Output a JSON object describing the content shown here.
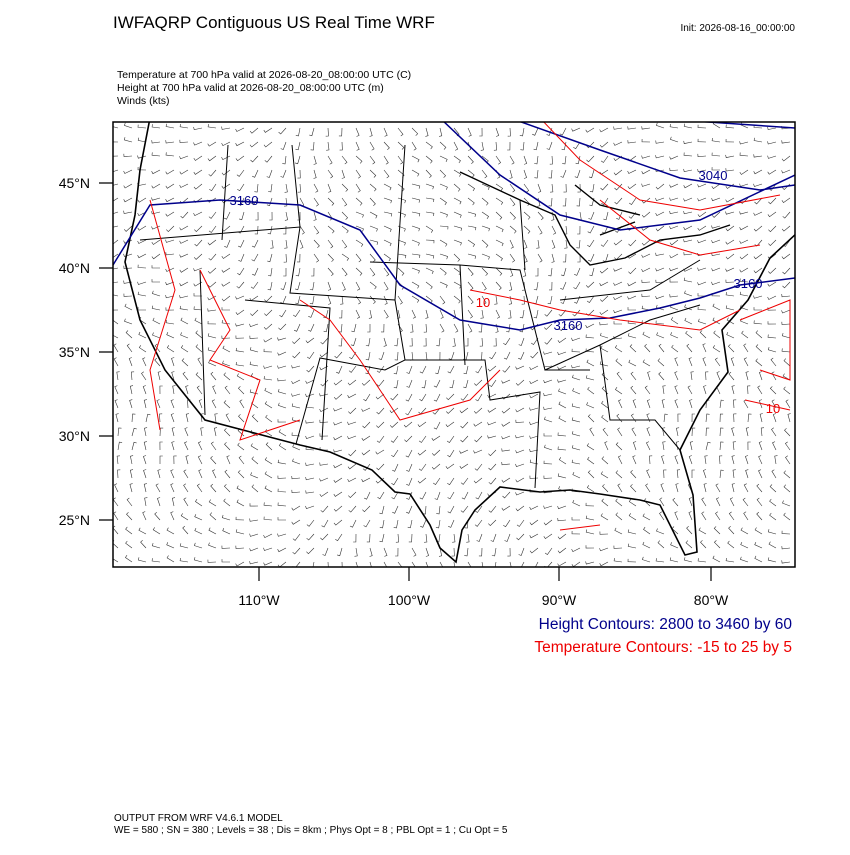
{
  "header": {
    "title": "IWFAQRP Contiguous US Real Time WRF",
    "init": "Init: 2026-08-16_00:00:00"
  },
  "fields": [
    "Temperature at 700 hPa valid at 2026-08-20_08:00:00 UTC   (C)",
    "Height at 700 hPa valid at 2026-08-20_08:00:00 UTC   (m)",
    "Winds   (kts)"
  ],
  "map": {
    "lat_labels": [
      "45°N",
      "40°N",
      "35°N",
      "30°N",
      "25°N"
    ],
    "lon_labels": [
      "110°W",
      "100°W",
      "90°W",
      "80°W"
    ],
    "contour_labels": [
      "3160",
      "3040",
      "3160",
      "3160",
      "10",
      "10"
    ]
  },
  "legend": [
    "Height Contours: 2800 to 3460 by 60",
    "Temperature Contours: -15 to 25 by 5"
  ],
  "footer": [
    "OUTPUT FROM WRF V4.6.1 MODEL",
    "WE = 580 ; SN = 380 ; Levels = 38 ; Dis = 8km ; Phys Opt = 8 ; PBL Opt = 1 ; Cu Opt = 5"
  ]
}
